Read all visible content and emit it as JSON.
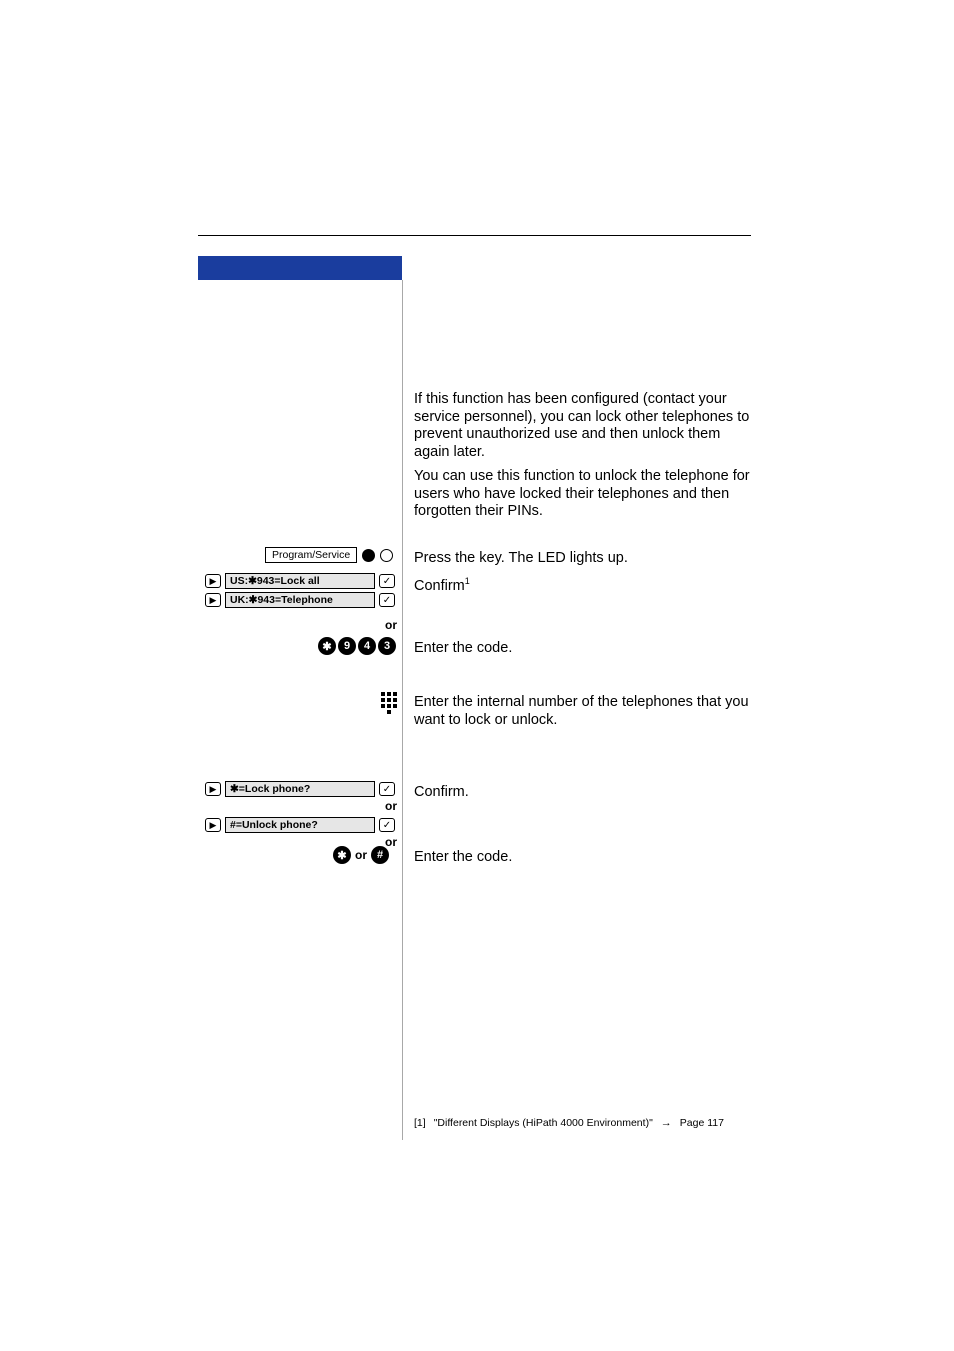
{
  "colors": {
    "tab_bg": "#1a3d9e",
    "page_bg": "#ffffff",
    "text": "#000000",
    "display_bg": "#e6e6e6",
    "divider": "#a8a8a8"
  },
  "typography": {
    "body_fontsize_pt": 11,
    "small_fontsize_pt": 8,
    "footnote_fontsize_pt": 8
  },
  "sidebar": {
    "program_service_label": "Program/Service",
    "display_us": "US:✱943=Lock all",
    "display_uk": "UK:✱943=Telephone",
    "display_lock": "✱=Lock phone?",
    "display_unlock": "#=Unlock phone?",
    "or_label": "or",
    "key_sequence_1": [
      "✱",
      "9",
      "4",
      "3"
    ],
    "code_or_label": "or",
    "star_key": "✱",
    "hash_key": "#"
  },
  "main": {
    "para1": "If this function has been configured (contact your service personnel), you can lock other telephones to prevent unauthorized use and then unlock them again later.",
    "para2": "You can use this function to unlock the telephone for users who have locked their telephones and then forgotten their PINs.",
    "press_key": "Press the key. The LED lights up.",
    "confirm1_text": "Confirm",
    "confirm1_sup": "1",
    "enter_code": "Enter the code.",
    "enter_internal": "Enter the internal number of the telephones that you want to lock or unlock.",
    "confirm2": "Confirm."
  },
  "footnote": {
    "marker": "[1]",
    "text": "\"Different Displays (HiPath 4000 Environment)\"",
    "arrow": "→",
    "page_ref": "Page 117"
  }
}
